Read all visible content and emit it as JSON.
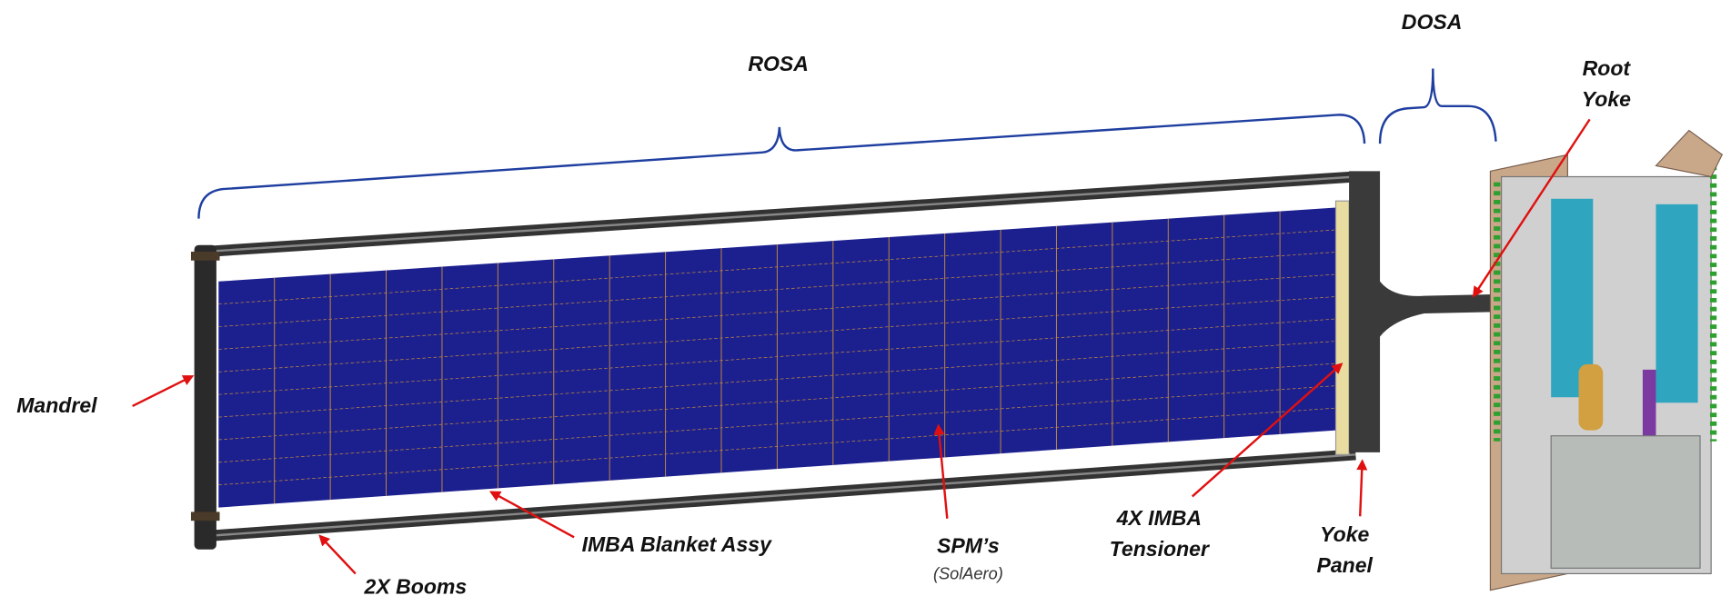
{
  "labels": {
    "rosa": "ROSA",
    "dosa": "DOSA",
    "root_yoke": [
      "Root",
      "Yoke"
    ],
    "mandrel": "Mandrel",
    "booms": "2X Booms",
    "blanket": "IMBA Blanket Assy",
    "spm": "SPM’s",
    "spm_maker": "(SolAero)",
    "tensioner": [
      "4X IMBA",
      "Tensioner"
    ],
    "yoke_panel": [
      "Yoke",
      "Panel"
    ]
  }
}
